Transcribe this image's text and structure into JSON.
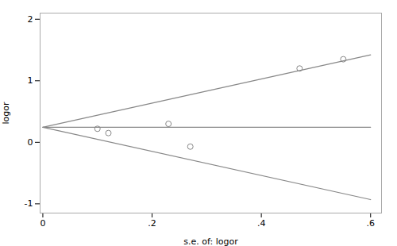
{
  "chart_data": {
    "type": "scatter",
    "xlabel": "s.e. of: logor",
    "ylabel": "logor",
    "xlim": [
      -0.005,
      0.62
    ],
    "ylim": [
      -1.15,
      2.1
    ],
    "xticks": [
      0,
      {
        "value": 0.2,
        "label": ".2"
      },
      {
        "value": 0.4,
        "label": ".4"
      },
      {
        "value": 0.6,
        "label": ".6"
      }
    ],
    "yticks": [
      -1,
      0,
      1,
      2
    ],
    "grid": false,
    "series": [
      {
        "type": "line",
        "color": "#888888",
        "x": [
          0.0,
          0.6
        ],
        "values": [
          0.245,
          0.245
        ]
      },
      {
        "type": "line",
        "color": "#888888",
        "x": [
          0.0,
          0.6
        ],
        "values": [
          0.245,
          1.421
        ]
      },
      {
        "type": "line",
        "color": "#888888",
        "x": [
          0.0,
          0.6
        ],
        "values": [
          0.245,
          -0.931
        ]
      },
      {
        "type": "scatter",
        "color": "#888888",
        "marker": "circle",
        "x": [
          0.1,
          0.12,
          0.23,
          0.27,
          0.47,
          0.55
        ],
        "values": [
          0.22,
          0.15,
          0.3,
          -0.07,
          1.2,
          1.35
        ]
      }
    ]
  }
}
